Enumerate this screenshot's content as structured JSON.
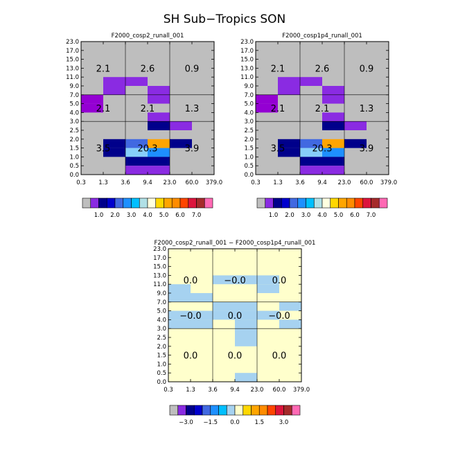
{
  "figure": {
    "title": "SH Sub−Tropics SON"
  },
  "chart_data": [
    {
      "type": "heatmap",
      "title": "F2000_cosp2_runall_001",
      "x_tick_labels": [
        "0.3",
        "1.3",
        "3.6",
        "9.4",
        "23.0",
        "60.0",
        "379.0"
      ],
      "y_tick_labels": [
        "0.0",
        "0.5",
        "1.0",
        "1.5",
        "2.0",
        "2.5",
        "3.0",
        "4.0",
        "5.0",
        "7.0",
        "9.0",
        "11.0",
        "13.0",
        "15.0",
        "17.0",
        "23.0"
      ],
      "background_color": "#bebebe",
      "grid_lines": {
        "x_bins": [
          2,
          4
        ],
        "y_bins": [
          6,
          9
        ]
      },
      "cells": [
        {
          "x": 0,
          "y": 8,
          "color": "#9400d3"
        },
        {
          "x": 0,
          "y": 7,
          "color": "#9400d3"
        },
        {
          "x": 1,
          "y": 10,
          "color": "#8a2be2"
        },
        {
          "x": 1,
          "y": 9,
          "color": "#8a2be2"
        },
        {
          "x": 2,
          "y": 10,
          "color": "#8a2be2"
        },
        {
          "x": 3,
          "y": 9,
          "color": "#8a2be2"
        },
        {
          "x": 3,
          "y": 8,
          "color": "#8a2be2"
        },
        {
          "x": 3,
          "y": 6,
          "color": "#8a2be2"
        },
        {
          "x": 3,
          "y": 5,
          "color": "#00008b"
        },
        {
          "x": 4,
          "y": 5,
          "color": "#8a2be2"
        },
        {
          "x": 1,
          "y": 3,
          "color": "#00008b"
        },
        {
          "x": 1,
          "y": 2,
          "color": "#00008b"
        },
        {
          "x": 2,
          "y": 3,
          "color": "#4169e1"
        },
        {
          "x": 2,
          "y": 2,
          "color": "#87cefa"
        },
        {
          "x": 2,
          "y": 1,
          "color": "#00008b"
        },
        {
          "x": 2,
          "y": 0,
          "color": "#8a2be2"
        },
        {
          "x": 3,
          "y": 3,
          "color": "#ffa500"
        },
        {
          "x": 3,
          "y": 2,
          "color": "#1e90ff"
        },
        {
          "x": 3,
          "y": 1,
          "color": "#00008b"
        },
        {
          "x": 3,
          "y": 0,
          "color": "#8a2be2"
        },
        {
          "x": 4,
          "y": 3,
          "color": "#00008b"
        }
      ],
      "annotations": [
        {
          "text": "2.1",
          "x": 1,
          "y": 12
        },
        {
          "text": "2.6",
          "x": 3,
          "y": 12
        },
        {
          "text": "0.9",
          "x": 5,
          "y": 12
        },
        {
          "text": "2.1",
          "x": 1,
          "y": 7.5
        },
        {
          "text": "2.1",
          "x": 3,
          "y": 7.5
        },
        {
          "text": "1.3",
          "x": 5,
          "y": 7.5
        },
        {
          "text": "3.5",
          "x": 1,
          "y": 3
        },
        {
          "text": "20.3",
          "x": 3,
          "y": 3
        },
        {
          "text": "3.9",
          "x": 5,
          "y": 3
        }
      ],
      "colorbar": {
        "colors": [
          "#bebebe",
          "#8a2be2",
          "#00008b",
          "#0000cd",
          "#4169e1",
          "#1e90ff",
          "#00bfff",
          "#b0e0e6",
          "#ffffe0",
          "#ffd700",
          "#ffa500",
          "#ff8c00",
          "#ff4500",
          "#dc143c",
          "#a52a2a",
          "#ff69b4"
        ],
        "labels": [
          "1.0",
          "2.0",
          "3.0",
          "4.0",
          "5.0",
          "6.0",
          "7.0"
        ]
      }
    },
    {
      "type": "heatmap",
      "title": "F2000_cosp1p4_runall_001",
      "x_tick_labels": [
        "0.3",
        "1.3",
        "3.6",
        "9.4",
        "23.0",
        "60.0",
        "379.0"
      ],
      "y_tick_labels": [
        "0.0",
        "0.5",
        "1.0",
        "1.5",
        "2.0",
        "2.5",
        "3.0",
        "4.0",
        "5.0",
        "7.0",
        "9.0",
        "11.0",
        "13.0",
        "15.0",
        "17.0",
        "23.0"
      ],
      "background_color": "#bebebe",
      "grid_lines": {
        "x_bins": [
          2,
          4
        ],
        "y_bins": [
          6,
          9
        ]
      },
      "cells": [
        {
          "x": 0,
          "y": 8,
          "color": "#9400d3"
        },
        {
          "x": 0,
          "y": 7,
          "color": "#9400d3"
        },
        {
          "x": 1,
          "y": 10,
          "color": "#8a2be2"
        },
        {
          "x": 1,
          "y": 9,
          "color": "#8a2be2"
        },
        {
          "x": 2,
          "y": 10,
          "color": "#8a2be2"
        },
        {
          "x": 3,
          "y": 9,
          "color": "#8a2be2"
        },
        {
          "x": 3,
          "y": 8,
          "color": "#8a2be2"
        },
        {
          "x": 3,
          "y": 6,
          "color": "#8a2be2"
        },
        {
          "x": 3,
          "y": 5,
          "color": "#00008b"
        },
        {
          "x": 4,
          "y": 5,
          "color": "#8a2be2"
        },
        {
          "x": 1,
          "y": 3,
          "color": "#00008b"
        },
        {
          "x": 1,
          "y": 2,
          "color": "#00008b"
        },
        {
          "x": 2,
          "y": 3,
          "color": "#4169e1"
        },
        {
          "x": 2,
          "y": 2,
          "color": "#87cefa"
        },
        {
          "x": 2,
          "y": 1,
          "color": "#00008b"
        },
        {
          "x": 2,
          "y": 0,
          "color": "#8a2be2"
        },
        {
          "x": 3,
          "y": 3,
          "color": "#ffa500"
        },
        {
          "x": 3,
          "y": 2,
          "color": "#1e90ff"
        },
        {
          "x": 3,
          "y": 1,
          "color": "#00008b"
        },
        {
          "x": 3,
          "y": 0,
          "color": "#8a2be2"
        },
        {
          "x": 4,
          "y": 3,
          "color": "#00008b"
        }
      ],
      "annotations": [
        {
          "text": "2.1",
          "x": 1,
          "y": 12
        },
        {
          "text": "2.6",
          "x": 3,
          "y": 12
        },
        {
          "text": "0.9",
          "x": 5,
          "y": 12
        },
        {
          "text": "2.1",
          "x": 1,
          "y": 7.5
        },
        {
          "text": "2.1",
          "x": 3,
          "y": 7.5
        },
        {
          "text": "1.3",
          "x": 5,
          "y": 7.5
        },
        {
          "text": "3.5",
          "x": 1,
          "y": 3
        },
        {
          "text": "20.3",
          "x": 3,
          "y": 3
        },
        {
          "text": "3.9",
          "x": 5,
          "y": 3
        }
      ],
      "colorbar": {
        "colors": [
          "#bebebe",
          "#8a2be2",
          "#00008b",
          "#0000cd",
          "#4169e1",
          "#1e90ff",
          "#00bfff",
          "#b0e0e6",
          "#ffffe0",
          "#ffd700",
          "#ffa500",
          "#ff8c00",
          "#ff4500",
          "#dc143c",
          "#a52a2a",
          "#ff69b4"
        ],
        "labels": [
          "1.0",
          "2.0",
          "3.0",
          "4.0",
          "5.0",
          "6.0",
          "7.0"
        ]
      }
    },
    {
      "type": "heatmap",
      "title": "F2000_cosp2_runall_001 − F2000_cosp1p4_runall_001",
      "x_tick_labels": [
        "0.3",
        "1.3",
        "3.6",
        "9.4",
        "23.0",
        "60.0",
        "379.0"
      ],
      "y_tick_labels": [
        "0.0",
        "0.5",
        "1.0",
        "1.5",
        "2.0",
        "2.5",
        "3.0",
        "4.0",
        "5.0",
        "7.0",
        "9.0",
        "11.0",
        "13.0",
        "15.0",
        "17.0",
        "23.0"
      ],
      "background_color": "#ffffcc",
      "grid_lines": {
        "x_bins": [
          2,
          4
        ],
        "y_bins": [
          6,
          9
        ]
      },
      "cells": [
        {
          "x": 0,
          "y": 10,
          "color": "#a6d2f0"
        },
        {
          "x": 0,
          "y": 9,
          "color": "#a6d2f0"
        },
        {
          "x": 0,
          "y": 7,
          "color": "#a6d2f0"
        },
        {
          "x": 0,
          "y": 6,
          "color": "#a6d2f0"
        },
        {
          "x": 1,
          "y": 9,
          "color": "#a6d2f0"
        },
        {
          "x": 1,
          "y": 7,
          "color": "#a6d2f0"
        },
        {
          "x": 1,
          "y": 6,
          "color": "#a6d2f0"
        },
        {
          "x": 2,
          "y": 11,
          "color": "#a6d2f0"
        },
        {
          "x": 2,
          "y": 8,
          "color": "#a6d2f0"
        },
        {
          "x": 2,
          "y": 7,
          "color": "#a6d2f0"
        },
        {
          "x": 3,
          "y": 11,
          "color": "#a6d2f0"
        },
        {
          "x": 3,
          "y": 8,
          "color": "#a6d2f0"
        },
        {
          "x": 3,
          "y": 7,
          "color": "#a6d2f0"
        },
        {
          "x": 3,
          "y": 6,
          "color": "#a6d2f0"
        },
        {
          "x": 3,
          "y": 5,
          "color": "#a6d2f0"
        },
        {
          "x": 3,
          "y": 4,
          "color": "#a6d2f0"
        },
        {
          "x": 3,
          "y": 0,
          "color": "#a6d2f0"
        },
        {
          "x": 4,
          "y": 11,
          "color": "#a6d2f0"
        },
        {
          "x": 4,
          "y": 10,
          "color": "#a6d2f0"
        },
        {
          "x": 4,
          "y": 7,
          "color": "#a6d2f0"
        },
        {
          "x": 5,
          "y": 8,
          "color": "#a6d2f0"
        },
        {
          "x": 5,
          "y": 6,
          "color": "#a6d2f0"
        }
      ],
      "annotations": [
        {
          "text": "0.0",
          "x": 1,
          "y": 11.5
        },
        {
          "text": "−0.0",
          "x": 3,
          "y": 11.5
        },
        {
          "text": "0.0",
          "x": 5,
          "y": 11.5
        },
        {
          "text": "−0.0",
          "x": 1,
          "y": 7.5
        },
        {
          "text": "0.0",
          "x": 3,
          "y": 7.5
        },
        {
          "text": "−0.0",
          "x": 5,
          "y": 7.5
        },
        {
          "text": "0.0",
          "x": 1,
          "y": 3
        },
        {
          "text": "0.0",
          "x": 3,
          "y": 3
        },
        {
          "text": "0.0",
          "x": 5,
          "y": 3
        }
      ],
      "colorbar": {
        "colors": [
          "#bebebe",
          "#8a2be2",
          "#00008b",
          "#0000cd",
          "#4169e1",
          "#1e90ff",
          "#00bfff",
          "#a6d2f0",
          "#ffffcc",
          "#ffd700",
          "#ffa500",
          "#ff8c00",
          "#ff4500",
          "#dc143c",
          "#a52a2a",
          "#ff69b4"
        ],
        "labels": [
          "−3.0",
          "−1.5",
          "0.0",
          "1.5",
          "3.0"
        ]
      }
    }
  ]
}
